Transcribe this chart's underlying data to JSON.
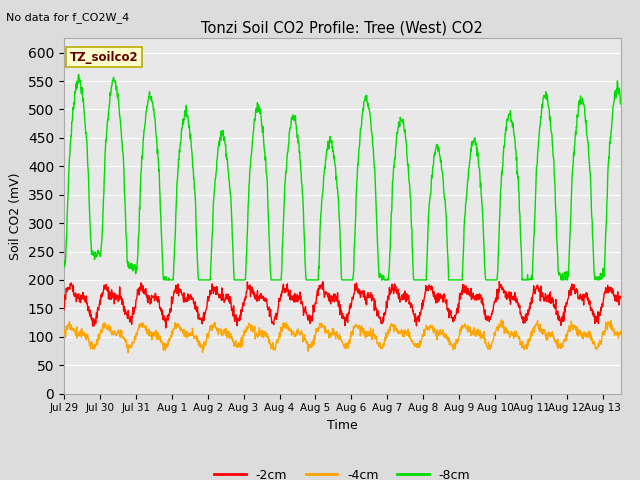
{
  "title": "Tonzi Soil CO2 Profile: Tree (West) CO2",
  "subtitle": "No data for f_CO2W_4",
  "ylabel": "Soil CO2 (mV)",
  "xlabel": "Time",
  "ylim": [
    0,
    625
  ],
  "yticks": [
    0,
    50,
    100,
    150,
    200,
    250,
    300,
    350,
    400,
    450,
    500,
    550,
    600
  ],
  "bg_color": "#dcdcdc",
  "plot_bg_color": "#e8e8e8",
  "color_2cm": "#ff0000",
  "color_4cm": "#ffa500",
  "color_8cm": "#00dd00",
  "legend_box_color": "#ffffcc",
  "legend_box_border": "#bbaa00",
  "legend_label": "TZ_soilco2",
  "xtick_labels": [
    "Jul 29",
    "Jul 30",
    "Jul 31",
    "Aug 1",
    "Aug 2",
    "Aug 3",
    "Aug 4",
    "Aug 5",
    "Aug 6",
    "Aug 7",
    "Aug 8",
    "Aug 9",
    "Aug 10",
    "Aug 11",
    "Aug 12",
    "Aug 13"
  ],
  "n_points": 1440,
  "end_day": 15.5
}
